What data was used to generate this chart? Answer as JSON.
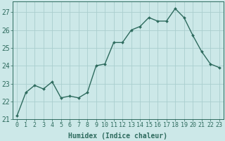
{
  "x": [
    0,
    1,
    2,
    3,
    4,
    5,
    6,
    7,
    8,
    9,
    10,
    11,
    12,
    13,
    14,
    15,
    16,
    17,
    18,
    19,
    20,
    21,
    22,
    23
  ],
  "y": [
    21.2,
    22.5,
    22.9,
    22.7,
    23.1,
    22.2,
    22.3,
    22.2,
    22.5,
    24.0,
    24.1,
    25.3,
    25.3,
    26.0,
    26.2,
    26.7,
    26.5,
    26.5,
    27.2,
    26.7,
    25.7,
    24.8,
    24.1,
    23.9
  ],
  "line_color": "#2e6b5e",
  "marker": "D",
  "marker_size": 2.0,
  "line_width": 1.0,
  "bg_color": "#cce8e8",
  "grid_color": "#aacece",
  "xlabel": "Humidex (Indice chaleur)",
  "xlabel_fontsize": 7,
  "tick_fontsize": 6,
  "ytick_fontsize": 7,
  "ylim": [
    21,
    27.6
  ],
  "yticks": [
    21,
    22,
    23,
    24,
    25,
    26,
    27
  ],
  "xlim": [
    -0.5,
    23.5
  ],
  "xticks": [
    0,
    1,
    2,
    3,
    4,
    5,
    6,
    7,
    8,
    9,
    10,
    11,
    12,
    13,
    14,
    15,
    16,
    17,
    18,
    19,
    20,
    21,
    22,
    23
  ]
}
